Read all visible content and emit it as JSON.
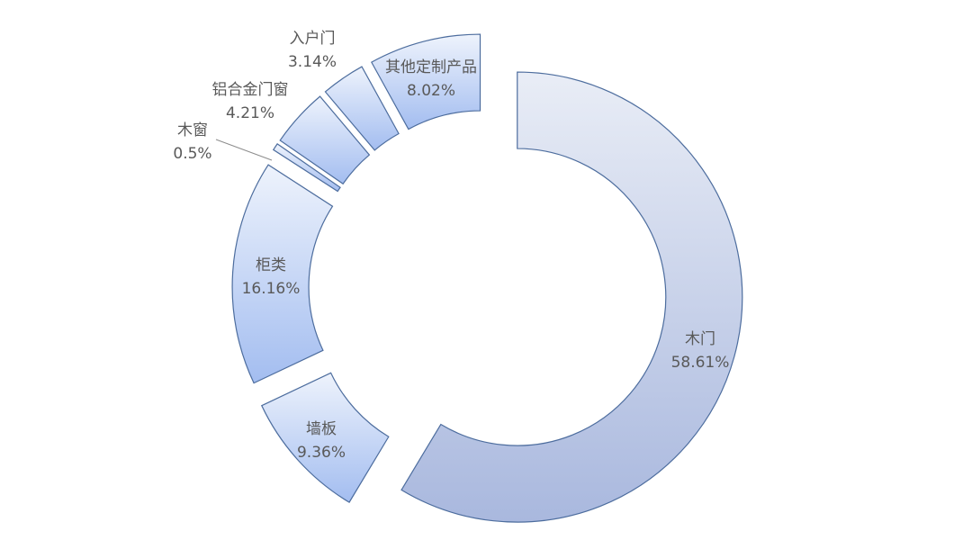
{
  "chart_data": {
    "type": "pie",
    "variant": "donut-exploded",
    "start_angle_deg": 0,
    "direction": "clockwise",
    "slices": [
      {
        "label": "木门",
        "value": 58.61,
        "value_label": "58.61%"
      },
      {
        "label": "墙板",
        "value": 9.36,
        "value_label": "9.36%"
      },
      {
        "label": "柜类",
        "value": 16.16,
        "value_label": "16.16%"
      },
      {
        "label": "木窗",
        "value": 0.5,
        "value_label": "0.5%"
      },
      {
        "label": "铝合金门窗",
        "value": 4.21,
        "value_label": "4.21%"
      },
      {
        "label": "入户门",
        "value": 3.14,
        "value_label": "3.14%"
      },
      {
        "label": "其他定制产品",
        "value": 8.02,
        "value_label": "8.02%"
      }
    ],
    "colors": {
      "fill_top": "#eef3fc",
      "fill_bottom": "#a3bdf0",
      "main_top": "#e9edf6",
      "main_bottom": "#a9b8de",
      "stroke": "#4d6d9e",
      "label": "#595959"
    }
  }
}
